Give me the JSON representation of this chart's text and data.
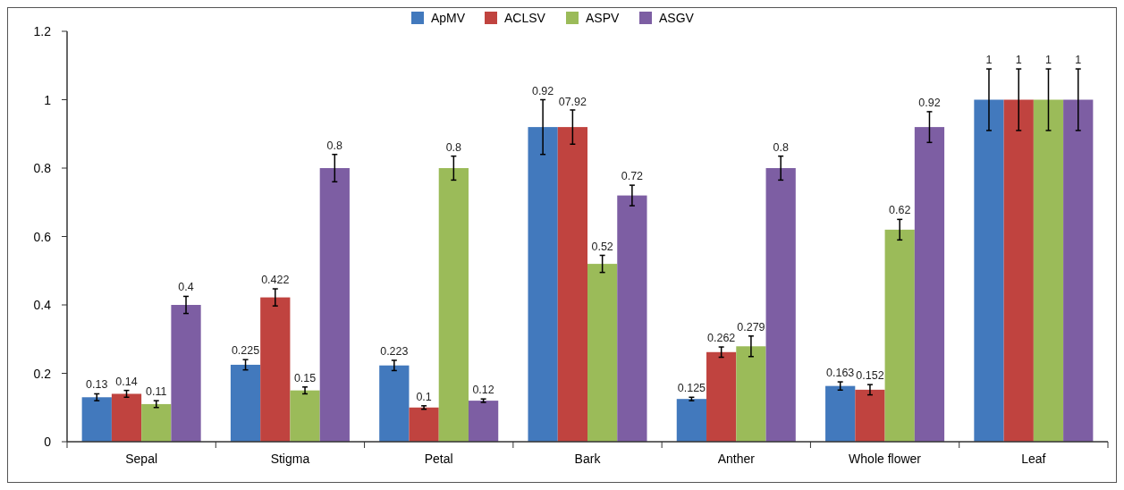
{
  "chart_data": {
    "type": "bar",
    "categories": [
      "Sepal",
      "Stigma",
      "Petal",
      "Bark",
      "Anther",
      "Whole flower",
      "Leaf"
    ],
    "series": [
      {
        "name": "ApMV",
        "color": "#4279bd",
        "values": [
          0.13,
          0.225,
          0.223,
          0.92,
          0.125,
          0.163,
          1
        ],
        "errors": [
          0.01,
          0.015,
          0.015,
          0.08,
          0.005,
          0.012,
          0.09
        ],
        "value_labels": [
          "0.13",
          "0.225",
          "0.223",
          "0.92",
          "0.125",
          "0.163",
          "1"
        ]
      },
      {
        "name": "ACLSV",
        "color": "#c0433f",
        "values": [
          0.14,
          0.422,
          0.1,
          0.92,
          0.262,
          0.152,
          1
        ],
        "errors": [
          0.01,
          0.025,
          0.005,
          0.05,
          0.015,
          0.015,
          0.09
        ],
        "value_labels": [
          "0.14",
          "0.422",
          "0.1",
          null,
          "0.262",
          "0.152",
          "1"
        ]
      },
      {
        "name": "ASPV",
        "color": "#9bbb59",
        "values": [
          0.11,
          0.15,
          0.8,
          0.52,
          0.279,
          0.62,
          1
        ],
        "errors": [
          0.01,
          0.01,
          0.035,
          0.025,
          0.03,
          0.03,
          0.09
        ],
        "value_labels": [
          "0.11",
          "0.15",
          "0.8",
          "0.52",
          "0.279",
          "0.62",
          "1"
        ]
      },
      {
        "name": "ASGV",
        "color": "#7d5ea3",
        "values": [
          0.4,
          0.8,
          0.12,
          0.72,
          0.8,
          0.92,
          1
        ],
        "errors": [
          0.025,
          0.04,
          0.005,
          0.03,
          0.035,
          0.045,
          0.09
        ],
        "value_labels": [
          "0.4",
          "0.8",
          "0.12",
          "0.72",
          "0.8",
          "0.92",
          "1"
        ]
      }
    ],
    "ylim": [
      0,
      1.2
    ],
    "yticks": [
      0,
      0.2,
      0.4,
      0.6,
      0.8,
      1,
      1.2
    ],
    "annotations": [
      {
        "text": "07.92",
        "x": "Bark",
        "y": 0.92
      }
    ],
    "grid": false,
    "legend": "top"
  }
}
